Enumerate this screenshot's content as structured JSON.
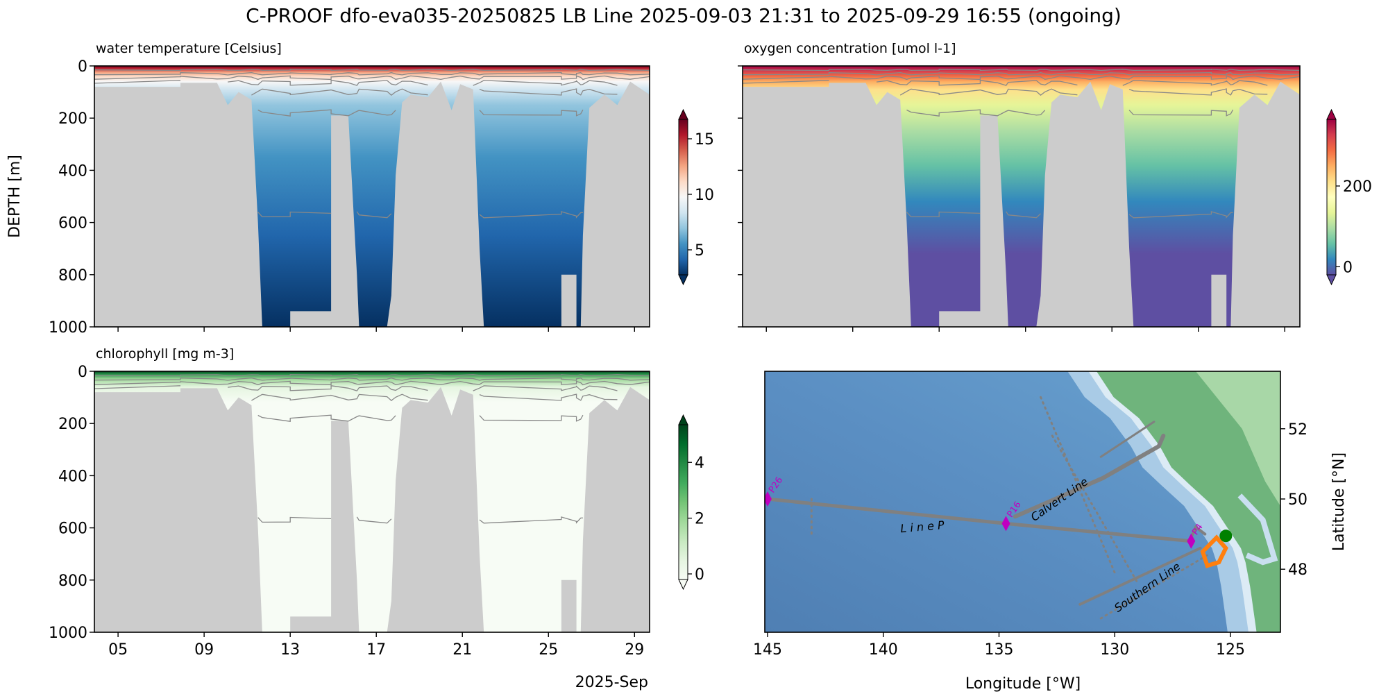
{
  "figure_title": "C-PROOF dfo-eva035-20250825   LB Line   2025-09-03 21:31 to 2025-09-29 16:55 (ongoing)",
  "colors": {
    "missing": "#cccccc",
    "track": "#808080",
    "station": "#c000c0",
    "current": "#008000",
    "recent": "#ff7f0e"
  },
  "chart_data": [
    {
      "type": "heatmap",
      "id": "temp",
      "title": "water temperature [Celsius]",
      "ylabel": "DEPTH [m]",
      "xlim_day": [
        3.9,
        29.7
      ],
      "ylim": [
        1000,
        0
      ],
      "xticks": [
        {
          "day": 5,
          "label": "05"
        },
        {
          "day": 9,
          "label": "09"
        },
        {
          "day": 13,
          "label": "13"
        },
        {
          "day": 17,
          "label": "17"
        },
        {
          "day": 21,
          "label": "21"
        },
        {
          "day": 25,
          "label": "25"
        },
        {
          "day": 29,
          "label": "29"
        }
      ],
      "yticks": [
        0,
        200,
        400,
        600,
        800,
        1000
      ],
      "colorbar": {
        "range": [
          2.75,
          16.75
        ],
        "ticks": [
          5,
          10,
          15
        ],
        "stops": [
          [
            "#67001f",
            0
          ],
          [
            "#b2182b",
            8
          ],
          [
            "#f4a582",
            25
          ],
          [
            "#fddbc7",
            40
          ],
          [
            "#f7f7f7",
            60
          ],
          [
            "#d1e5f0",
            90
          ],
          [
            "#92c5de",
            150
          ],
          [
            "#4393c3",
            350
          ],
          [
            "#2166ac",
            650
          ],
          [
            "#053061",
            1000
          ]
        ],
        "cmap_stops": [
          "#053061",
          "#2166ac",
          "#4393c3",
          "#92c5de",
          "#d1e5f0",
          "#f7f7f7",
          "#fddbc7",
          "#f4a582",
          "#d6604d",
          "#b2182b",
          "#67001f"
        ]
      },
      "contour_depths_m": [
        15,
        30,
        45,
        65,
        100,
        180,
        570
      ]
    },
    {
      "type": "heatmap",
      "id": "oxy",
      "title": "oxygen concentration [umol l-1]",
      "xlim_day": [
        3.9,
        29.7
      ],
      "ylim": [
        1000,
        0
      ],
      "yticks": [
        0,
        200,
        400,
        600,
        800,
        1000
      ],
      "colorbar": {
        "range": [
          -20,
          365
        ],
        "ticks": [
          0,
          200
        ],
        "stops": [
          [
            "#9e0142",
            0
          ],
          [
            "#d53e4f",
            20
          ],
          [
            "#f46d43",
            40
          ],
          [
            "#fdae61",
            60
          ],
          [
            "#fee08b",
            90
          ],
          [
            "#e6f598",
            150
          ],
          [
            "#abdda4",
            250
          ],
          [
            "#66c2a5",
            380
          ],
          [
            "#3288bd",
            520
          ],
          [
            "#5e4fa2",
            720
          ],
          [
            "#5e4fa2",
            1000
          ]
        ],
        "cmap_stops": [
          "#5e4fa2",
          "#3288bd",
          "#66c2a5",
          "#abdda4",
          "#e6f598",
          "#ffffbf",
          "#fee08b",
          "#fdae61",
          "#f46d43",
          "#d53e4f",
          "#9e0142"
        ]
      },
      "contour_depths_m": [
        15,
        30,
        45,
        65,
        100,
        180,
        570
      ]
    },
    {
      "type": "heatmap",
      "id": "chl",
      "title": "chlorophyll [mg m-3]",
      "xlabel": "2025-Sep",
      "xlim_day": [
        3.9,
        29.7
      ],
      "ylim": [
        1000,
        0
      ],
      "xticks": [
        {
          "day": 5,
          "label": "05"
        },
        {
          "day": 9,
          "label": "09"
        },
        {
          "day": 13,
          "label": "13"
        },
        {
          "day": 17,
          "label": "17"
        },
        {
          "day": 21,
          "label": "21"
        },
        {
          "day": 25,
          "label": "25"
        },
        {
          "day": 29,
          "label": "29"
        }
      ],
      "yticks": [
        0,
        200,
        400,
        600,
        800,
        1000
      ],
      "colorbar": {
        "range": [
          -0.2,
          5.35
        ],
        "ticks": [
          0,
          2,
          4
        ],
        "stops": [
          [
            "#00441b",
            0
          ],
          [
            "#238b45",
            10
          ],
          [
            "#a1d99b",
            30
          ],
          [
            "#e5f5e0",
            60
          ],
          [
            "#f7fcf5",
            120
          ],
          [
            "#f7fcf5",
            1000
          ]
        ],
        "cmap_stops": [
          "#f7fcf5",
          "#e5f5e0",
          "#c7e9c0",
          "#a1d99b",
          "#74c476",
          "#41ab5d",
          "#238b45",
          "#006d2c",
          "#00441b"
        ]
      },
      "contour_depths_m": [
        15,
        30,
        45,
        65,
        100,
        180,
        570
      ]
    }
  ],
  "profile_max_depth_m": [
    [
      3.9,
      80
    ],
    [
      7.9,
      80
    ],
    [
      7.9,
      65
    ],
    [
      9.6,
      65
    ],
    [
      10.1,
      150
    ],
    [
      10.6,
      100
    ],
    [
      11.2,
      130
    ],
    [
      11.5,
      600
    ],
    [
      11.7,
      1000
    ],
    [
      13.0,
      1000
    ],
    [
      13.0,
      940
    ],
    [
      14.9,
      940
    ],
    [
      14.9,
      190
    ],
    [
      15.7,
      190
    ],
    [
      16.1,
      800
    ],
    [
      16.2,
      1000
    ],
    [
      17.5,
      1000
    ],
    [
      17.7,
      880
    ],
    [
      17.9,
      420
    ],
    [
      18.2,
      140
    ],
    [
      18.6,
      110
    ],
    [
      19.4,
      120
    ],
    [
      20.0,
      60
    ],
    [
      20.5,
      170
    ],
    [
      20.9,
      70
    ],
    [
      21.5,
      90
    ],
    [
      21.8,
      700
    ],
    [
      22.0,
      1000
    ],
    [
      25.6,
      1000
    ],
    [
      25.6,
      800
    ],
    [
      26.3,
      800
    ],
    [
      26.3,
      1000
    ],
    [
      26.5,
      1000
    ],
    [
      26.6,
      650
    ],
    [
      26.9,
      160
    ],
    [
      27.6,
      110
    ],
    [
      28.2,
      150
    ],
    [
      28.8,
      60
    ],
    [
      29.7,
      110
    ]
  ],
  "map": {
    "type": "map",
    "xlabel": "Longitude [°W]",
    "ylabel": "Latitude [°N]",
    "lon_range_w": [
      145.15,
      122.8
    ],
    "lat_range": [
      46.2,
      53.6
    ],
    "xticks": [
      145,
      140,
      135,
      130,
      125
    ],
    "yticks": [
      48,
      50,
      52
    ],
    "stations": [
      {
        "name": "P26",
        "lon": 145.0,
        "lat": 50.0
      },
      {
        "name": "P16",
        "lon": 134.7,
        "lat": 49.3
      },
      {
        "name": "P4",
        "lon": 126.7,
        "lat": 48.8
      }
    ],
    "line_labels": [
      {
        "text": "L  i  n  e   P",
        "lon": 138.3,
        "lat": 49.1
      },
      {
        "text": "Calvert Line",
        "lon": 132.3,
        "lat": 49.9
      },
      {
        "text": "Southern Line",
        "lon": 128.5,
        "lat": 47.4
      }
    ],
    "current_position": {
      "lon": 125.2,
      "lat": 48.95
    }
  }
}
